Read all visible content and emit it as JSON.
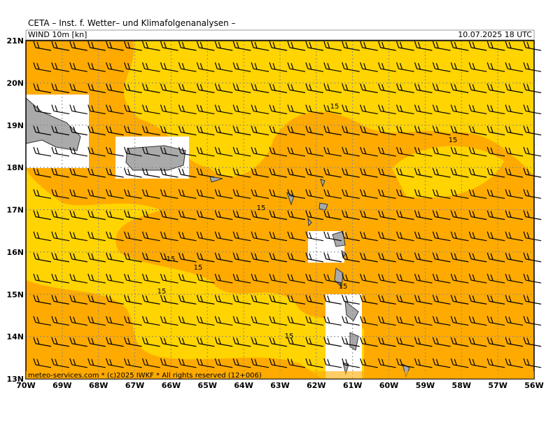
{
  "header": {
    "title": "CETA – Inst. f. Wetter– und Klimafolgenanalysen –",
    "field": "WIND 10m [kn]",
    "valid": "10.07.2025 18 UTC"
  },
  "axes": {
    "lat_labels": [
      "21N",
      "20N",
      "19N",
      "18N",
      "17N",
      "16N",
      "15N",
      "14N",
      "13N"
    ],
    "lon_labels": [
      "70W",
      "69W",
      "68W",
      "67W",
      "66W",
      "65W",
      "64W",
      "63W",
      "62W",
      "61W",
      "60W",
      "59W",
      "58W",
      "57W",
      "56W"
    ]
  },
  "contour_labels": [
    "15",
    "15",
    "15",
    "15",
    "15",
    "15",
    "15",
    "15"
  ],
  "footer": "meteo-services.com * (c)2025 IWKF * All rights reserved (12+006)"
}
